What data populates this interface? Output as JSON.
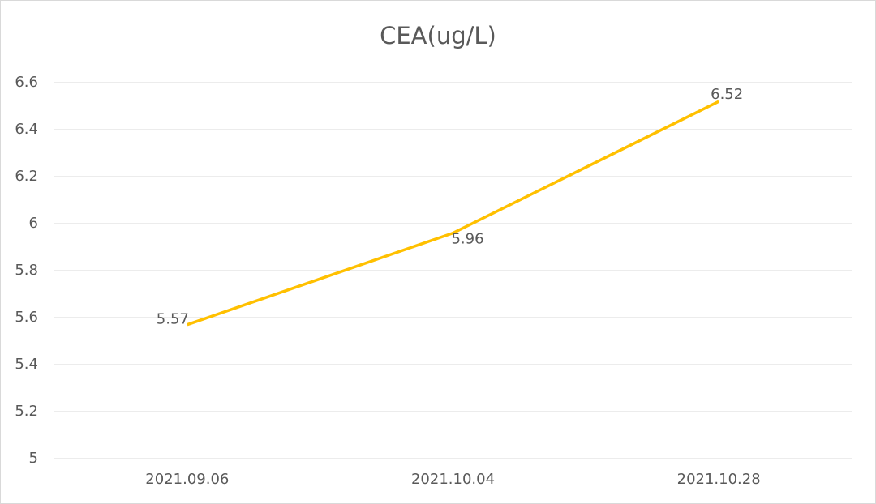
{
  "chart_data": {
    "type": "line",
    "title": "CEA(ug/L)",
    "categories": [
      "2021.09.06",
      "2021.10.04",
      "2021.10.28"
    ],
    "values": [
      5.57,
      5.96,
      6.52
    ],
    "color": "#ffc000",
    "ylim": [
      5,
      6.6
    ],
    "yticks": [
      5,
      5.2,
      5.4,
      5.6,
      5.8,
      6,
      6.2,
      6.4,
      6.6
    ],
    "grid": true
  }
}
